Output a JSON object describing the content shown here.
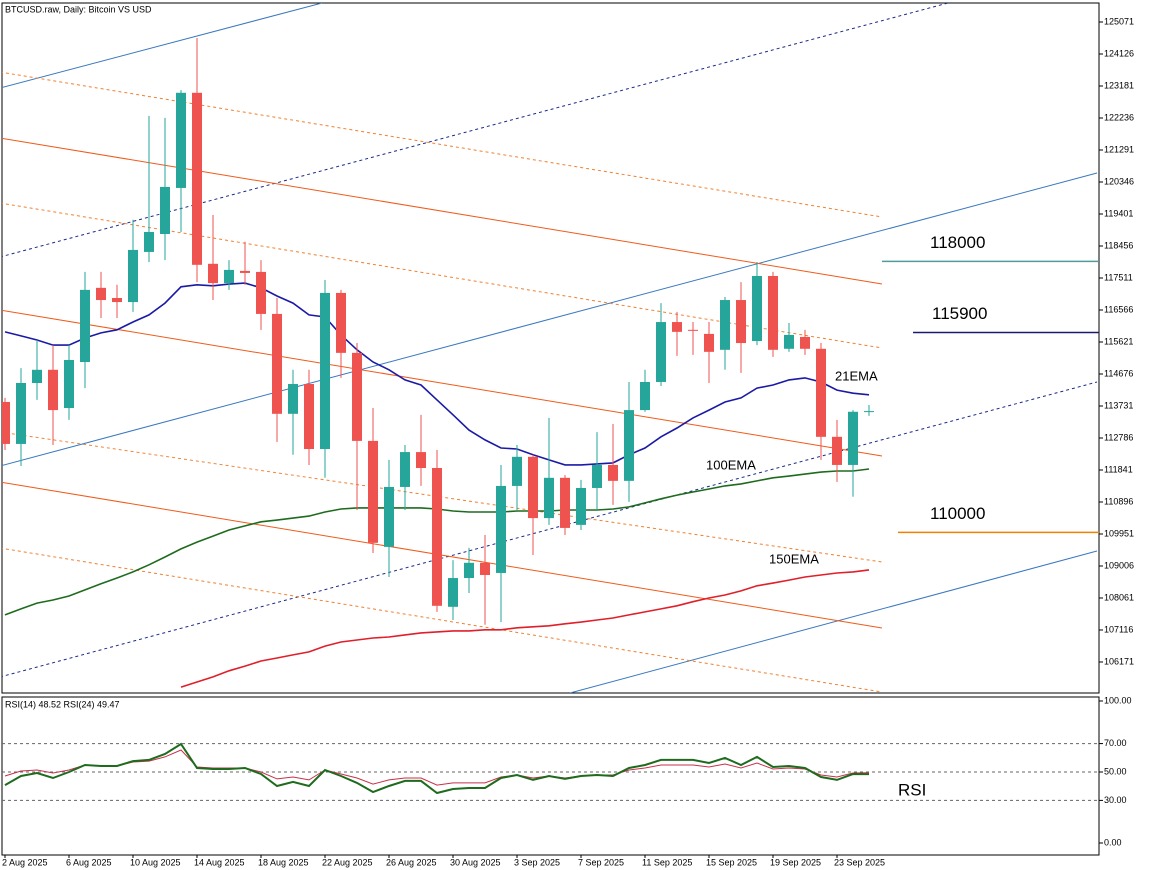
{
  "chart_data": [
    {
      "type": "candlestick",
      "title": "BTCUSD.raw, Daily:  Bitcoin VS USD",
      "up_color": "#26a69a",
      "down_color": "#ef5350",
      "open": [
        113850,
        112610,
        114410,
        114800,
        113670,
        115030,
        117220,
        116920,
        116800,
        118280,
        118810,
        120170,
        122980,
        117930,
        117360,
        117720,
        117690,
        116450,
        113500,
        114380,
        112460,
        117070,
        115300,
        112700,
        109570,
        111340,
        112370,
        111900,
        107800,
        108650,
        109100,
        108800,
        111370,
        112230,
        110420,
        111610,
        110220,
        111310,
        111990,
        111520,
        113610,
        114440,
        116210,
        115980,
        115860,
        115390,
        116860,
        115650,
        117570,
        115420,
        115770,
        115420,
        112820,
        111990,
        113560
      ],
      "high": [
        113970,
        114850,
        115680,
        115530,
        115530,
        117690,
        117690,
        117310,
        119230,
        122300,
        122240,
        123060,
        124600,
        119370,
        118040,
        118580,
        118040,
        116920,
        114800,
        114800,
        117450,
        117160,
        115590,
        113670,
        112140,
        112580,
        113470,
        112430,
        109180,
        109540,
        109920,
        111990,
        112580,
        112290,
        113380,
        111690,
        111550,
        112960,
        113200,
        114440,
        114800,
        116770,
        116510,
        116210,
        116210,
        116950,
        117390,
        117980,
        117690,
        116180,
        115980,
        115590,
        113320,
        113610,
        113760
      ],
      "low": [
        112430,
        111960,
        113910,
        112580,
        113320,
        114260,
        116330,
        116330,
        116510,
        117980,
        118040,
        118870,
        117390,
        116860,
        117160,
        117310,
        115980,
        112670,
        112290,
        111990,
        111610,
        114560,
        110660,
        109390,
        108680,
        110660,
        111370,
        107650,
        107410,
        108210,
        107270,
        107350,
        110660,
        109330,
        110220,
        109920,
        110070,
        110660,
        110810,
        110900,
        113560,
        114320,
        115210,
        115240,
        114410,
        114800,
        114710,
        115530,
        115180,
        115330,
        115240,
        112140,
        111490,
        111050,
        113440
      ],
      "close": [
        112610,
        114410,
        114800,
        113610,
        115090,
        117160,
        116860,
        116800,
        118340,
        118870,
        120200,
        122980,
        117900,
        117360,
        117750,
        117660,
        116450,
        113500,
        114380,
        112460,
        117070,
        115300,
        112700,
        109690,
        111340,
        112370,
        111900,
        107830,
        108650,
        109100,
        108740,
        111370,
        112230,
        110420,
        111610,
        110130,
        111310,
        111990,
        111520,
        113610,
        114440,
        116210,
        115920,
        115950,
        115330,
        116860,
        115590,
        117570,
        115390,
        115830,
        115420,
        112820,
        111990,
        113560,
        113580
      ],
      "overlays": [
        {
          "name": "21EMA",
          "color": "#1a1aa6",
          "values": [
            115920,
            115800,
            115680,
            115530,
            115530,
            115740,
            115890,
            115980,
            116210,
            116420,
            116770,
            117250,
            117310,
            117280,
            117330,
            117360,
            117220,
            116980,
            116770,
            116420,
            116360,
            115830,
            115390,
            115030,
            114800,
            114500,
            114350,
            113910,
            113470,
            113020,
            112730,
            112490,
            112460,
            112290,
            112140,
            111990,
            111990,
            112020,
            112050,
            112290,
            112490,
            112820,
            113080,
            113380,
            113610,
            113850,
            113970,
            114260,
            114350,
            114500,
            114560,
            114440,
            114200,
            114110,
            114060
          ]
        },
        {
          "name": "100EMA",
          "color": "#1e6b1e",
          "values": [
            107560,
            107740,
            107910,
            108000,
            108120,
            108300,
            108480,
            108650,
            108830,
            109040,
            109270,
            109510,
            109710,
            109890,
            110070,
            110190,
            110310,
            110360,
            110420,
            110480,
            110600,
            110690,
            110720,
            110720,
            110720,
            110720,
            110720,
            110690,
            110630,
            110600,
            110600,
            110600,
            110630,
            110630,
            110630,
            110660,
            110660,
            110660,
            110690,
            110750,
            110870,
            110990,
            111100,
            111190,
            111280,
            111370,
            111430,
            111520,
            111610,
            111660,
            111720,
            111780,
            111810,
            111810,
            111870
          ]
        },
        {
          "name": "150EMA",
          "color": "#e01f2a",
          "values": [
            null,
            null,
            null,
            null,
            null,
            null,
            null,
            null,
            null,
            null,
            null,
            105430,
            105580,
            105730,
            105910,
            106050,
            106200,
            106290,
            106380,
            106470,
            106640,
            106760,
            106820,
            106880,
            106910,
            106970,
            107030,
            107060,
            107090,
            107090,
            107120,
            107120,
            107180,
            107210,
            107240,
            107300,
            107350,
            107410,
            107470,
            107560,
            107650,
            107740,
            107830,
            107950,
            108060,
            108150,
            108270,
            108420,
            108500,
            108590,
            108680,
            108740,
            108800,
            108830,
            108890
          ]
        }
      ],
      "levels": [
        {
          "value": 118000,
          "color": "#4f9c9c"
        },
        {
          "value": 115900,
          "color": "#1a1a6e"
        },
        {
          "value": 110000,
          "color": "#f08000"
        }
      ],
      "ylim": [
        105255,
        125632
      ],
      "yticks": [
        125071,
        124126,
        123181,
        122236,
        121291,
        120346,
        119401,
        118456,
        117511,
        116566,
        115621,
        114676,
        113731,
        112786,
        111841,
        110896,
        109951,
        109006,
        108061,
        107116,
        106171
      ]
    },
    {
      "type": "line",
      "title": "RSI(14) 48.52 RSI(24) 49.47",
      "annotation": "RSI",
      "annotation_color": "#1e6b1e",
      "categories": [
        "2 Aug 2025",
        null,
        null,
        null,
        "6 Aug 2025",
        null,
        null,
        null,
        "10 Aug 2025",
        null,
        null,
        null,
        "14 Aug 2025",
        null,
        null,
        null,
        "18 Aug 2025",
        null,
        null,
        null,
        "22 Aug 2025",
        null,
        null,
        null,
        "26 Aug 2025",
        null,
        null,
        null,
        "30 Aug 2025",
        null,
        null,
        null,
        "3 Sep 2025",
        null,
        null,
        null,
        "7 Sep 2025",
        null,
        null,
        null,
        "11 Sep 2025",
        null,
        null,
        null,
        "15 Sep 2025",
        null,
        null,
        null,
        "19 Sep 2025",
        null,
        null,
        null,
        "23 Sep 2025",
        null,
        null
      ],
      "series": [
        {
          "name": "RSI(24)",
          "color": "#c8304a",
          "width": 1,
          "values": [
            47.2,
            50.7,
            51.4,
            49.3,
            51.4,
            54.9,
            54.2,
            54.2,
            57.0,
            57.7,
            60.6,
            65.5,
            53.5,
            52.8,
            52.8,
            52.8,
            50.0,
            45.1,
            46.5,
            44.4,
            51.4,
            48.6,
            45.8,
            41.5,
            44.4,
            45.8,
            45.8,
            40.8,
            42.3,
            42.3,
            42.3,
            46.5,
            47.9,
            45.8,
            47.2,
            45.8,
            47.2,
            47.9,
            47.9,
            51.4,
            52.8,
            54.9,
            54.9,
            54.9,
            53.5,
            55.6,
            52.8,
            56.3,
            52.1,
            52.8,
            52.1,
            47.9,
            46.5,
            49.3,
            49.5
          ]
        },
        {
          "name": "RSI(14)",
          "color": "#1e6b1e",
          "width": 2,
          "values": [
            40.8,
            47.2,
            49.3,
            45.8,
            50.0,
            54.9,
            54.2,
            54.2,
            57.7,
            58.5,
            62.7,
            69.7,
            52.8,
            52.1,
            52.1,
            52.8,
            48.6,
            40.1,
            43.0,
            40.1,
            51.4,
            47.2,
            42.3,
            35.9,
            40.1,
            43.7,
            43.7,
            35.2,
            38.0,
            38.7,
            38.7,
            45.8,
            47.9,
            44.4,
            47.2,
            45.1,
            47.2,
            47.9,
            47.2,
            52.8,
            54.9,
            58.5,
            58.5,
            58.5,
            56.3,
            59.9,
            54.9,
            60.6,
            53.5,
            54.2,
            52.8,
            46.5,
            44.4,
            48.6,
            48.5
          ]
        }
      ],
      "levels": [
        70,
        50,
        30
      ],
      "ylim": [
        -8.45,
        102.8
      ],
      "yticks": [
        {
          "value": 100,
          "label": "100.00"
        },
        {
          "value": 70,
          "label": "70.00"
        },
        {
          "value": 50,
          "label": "50.00"
        },
        {
          "value": 30,
          "label": "30.00"
        },
        {
          "value": 0,
          "label": "0.00"
        }
      ]
    }
  ]
}
